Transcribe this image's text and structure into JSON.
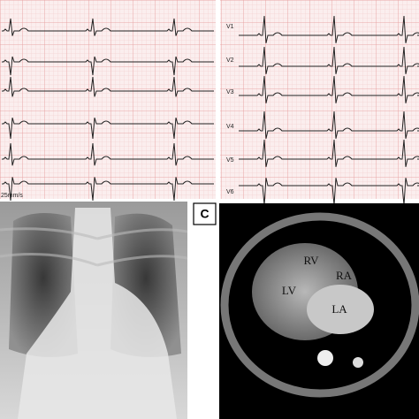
{
  "ecg": {
    "speed": "25mm/s",
    "leads": [
      "V1",
      "V2",
      "V3",
      "V4",
      "V5",
      "V6"
    ]
  },
  "panel_label": "C",
  "mri_labels": [
    "RV",
    "RA",
    "LV",
    "LA"
  ]
}
